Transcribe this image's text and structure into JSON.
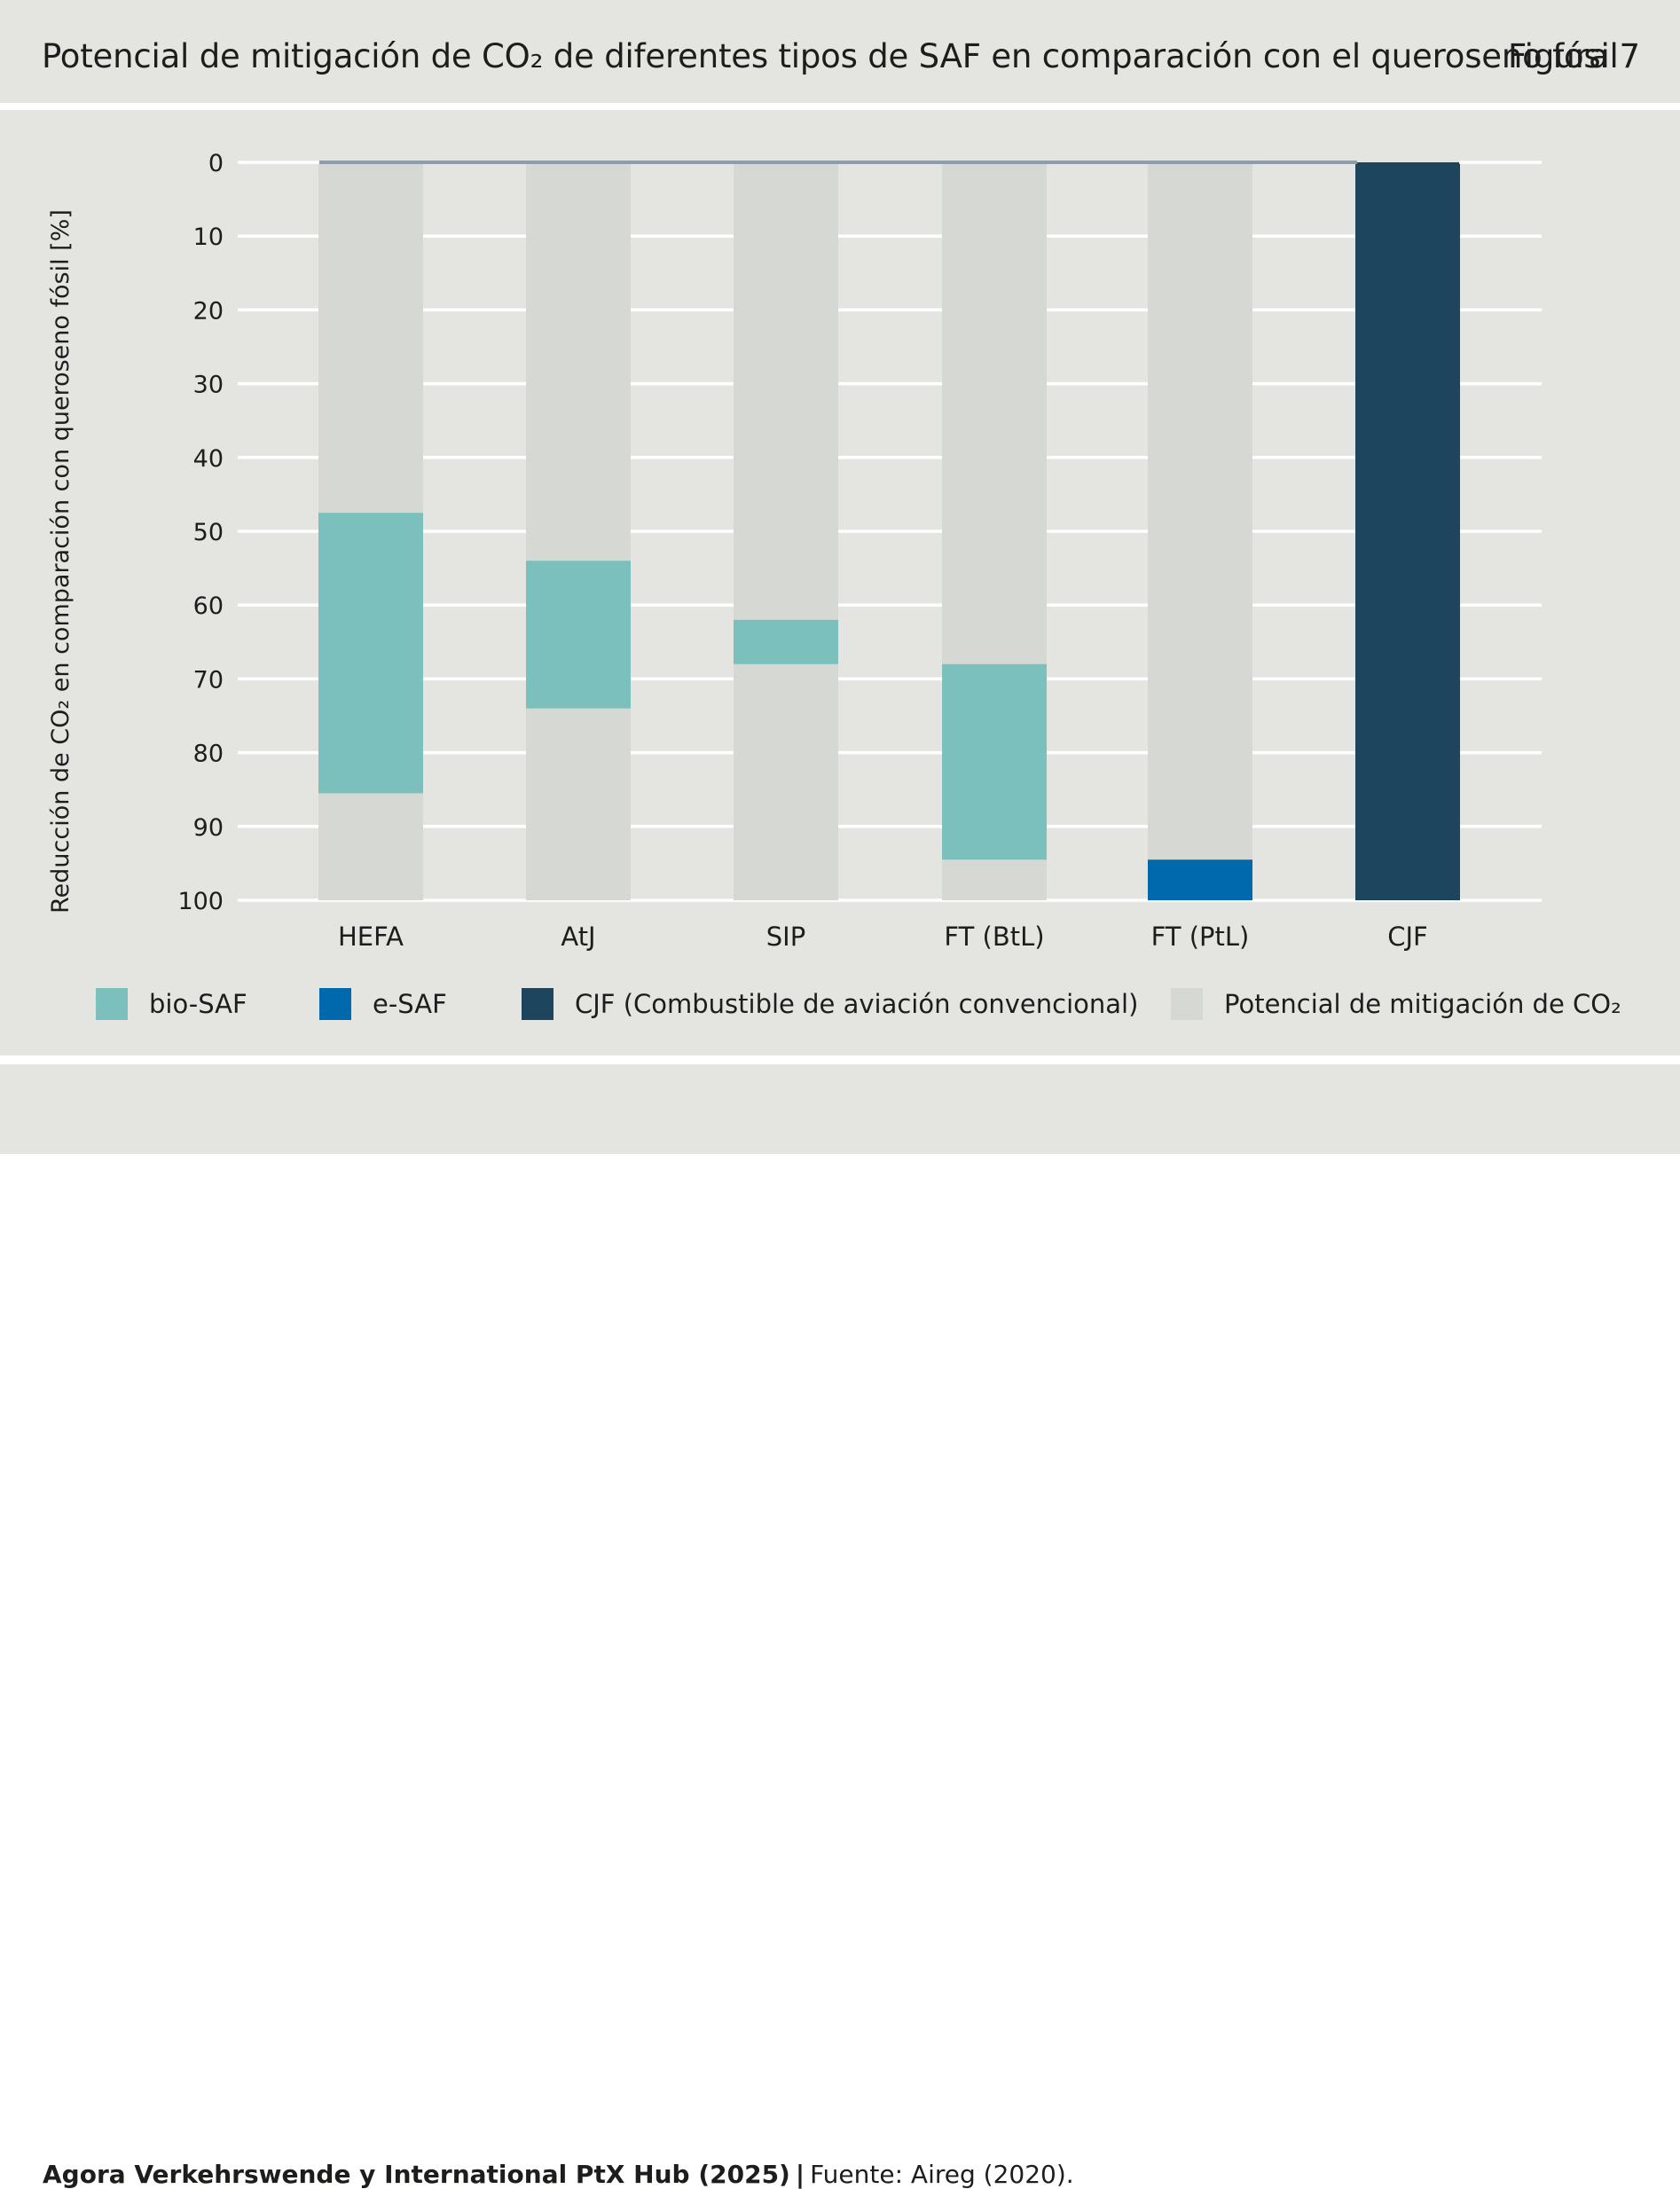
{
  "header": {
    "title": "Potencial de mitigación de CO₂ de diferentes tipos de SAF en comparación con el queroseno fósil",
    "figure_label": "Figura 7"
  },
  "chart_data": {
    "type": "bar",
    "subtype": "floating-bar",
    "ylabel": "Reducción de CO₂ en comparación con queroseno fósil [%]",
    "yaxis_inverted": true,
    "ylim": [
      0,
      100
    ],
    "yticks": [
      0,
      10,
      20,
      30,
      40,
      50,
      60,
      70,
      80,
      90,
      100
    ],
    "grid": true,
    "categories": [
      "HEFA",
      "AtJ",
      "SIP",
      "FT (BtL)",
      "FT (PtL)",
      "CJF"
    ],
    "background_series": {
      "name": "Potencial de mitigación de CO₂",
      "color": "#d6d8d4",
      "values": [
        100,
        100,
        100,
        100,
        100,
        0
      ]
    },
    "series": [
      {
        "name": "bio-SAF",
        "color": "#7bc0bc",
        "ranges": [
          [
            47.5,
            85.5
          ],
          [
            54,
            74
          ],
          [
            62,
            68
          ],
          [
            68,
            94.5
          ],
          null,
          null
        ]
      },
      {
        "name": "e-SAF",
        "color": "#0068ac",
        "ranges": [
          null,
          null,
          null,
          null,
          [
            94.5,
            100
          ],
          null
        ]
      },
      {
        "name": "CJF (Combustible de aviación convencional)",
        "color": "#1d465e",
        "ranges": [
          null,
          null,
          null,
          null,
          null,
          [
            0,
            100
          ]
        ]
      }
    ],
    "zero_line_color": "#8a9fab",
    "legend_position": "bottom"
  },
  "legend": {
    "items": [
      {
        "label": "bio-SAF",
        "color": "#7bc0bc"
      },
      {
        "label": "e-SAF",
        "color": "#0068ac"
      },
      {
        "label": "CJF (Combustible de aviación convencional)",
        "color": "#1d465e"
      },
      {
        "label": "Potencial de mitigación de CO₂",
        "color": "#d6d8d4"
      }
    ]
  },
  "footer": {
    "source_bold": "Agora Verkehrswende y International PtX Hub (2025)",
    "separator": "|",
    "source_text": "Fuente: Aireg (2020)."
  }
}
